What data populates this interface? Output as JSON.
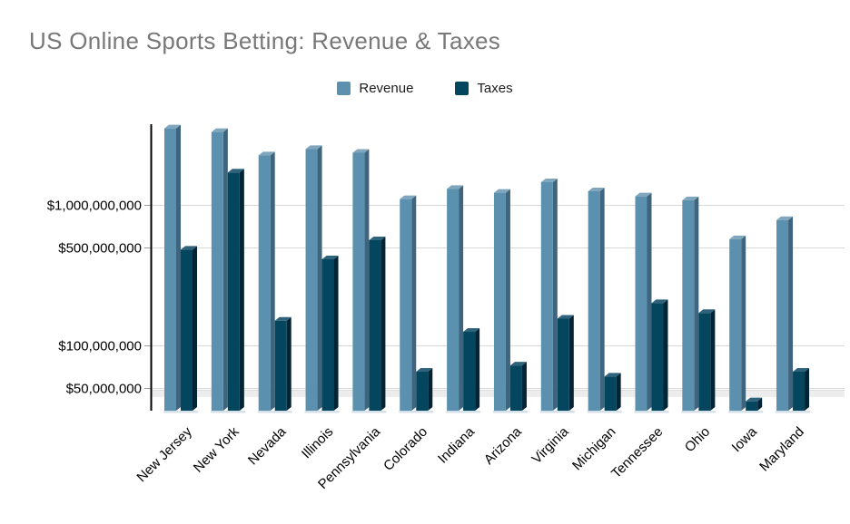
{
  "chart_data": {
    "type": "bar",
    "title": "US Online Sports Betting: Revenue & Taxes",
    "title_color": "#787878",
    "background": "#ffffff",
    "legend_position": "top",
    "grid": true,
    "categories": [
      "New Jersey",
      "New York",
      "Nevada",
      "Illinois",
      "Pennsylvania",
      "Colorado",
      "Indiana",
      "Arizona",
      "Virginia",
      "Michigan",
      "Tennessee",
      "Ohio",
      "Iowa",
      "Maryland"
    ],
    "series": [
      {
        "name": "Revenue",
        "color": "#5b90ae",
        "color_side": "#3f657e",
        "color_top": "#7fa6bd",
        "values": [
          3500000000,
          3300000000,
          2250000000,
          2500000000,
          2350000000,
          1100000000,
          1300000000,
          1220000000,
          1450000000,
          1250000000,
          1150000000,
          1080000000,
          570000000,
          780000000
        ]
      },
      {
        "name": "Taxes",
        "color": "#05465f",
        "color_side": "#032434",
        "color_top": "#2f627b",
        "values": [
          480000000,
          1700000000,
          150000000,
          410000000,
          560000000,
          65000000,
          125000000,
          72000000,
          155000000,
          60000000,
          200000000,
          170000000,
          40000000,
          65000000
        ]
      }
    ],
    "y_axis": {
      "scale": "log",
      "ticks": [
        {
          "value": 1000000000,
          "label": "$1,000,000,000"
        },
        {
          "value": 500000000,
          "label": "$500,000,000"
        },
        {
          "value": 100000000,
          "label": "$100,000,000"
        },
        {
          "value": 50000000,
          "label": "$50,000,000"
        }
      ]
    }
  }
}
